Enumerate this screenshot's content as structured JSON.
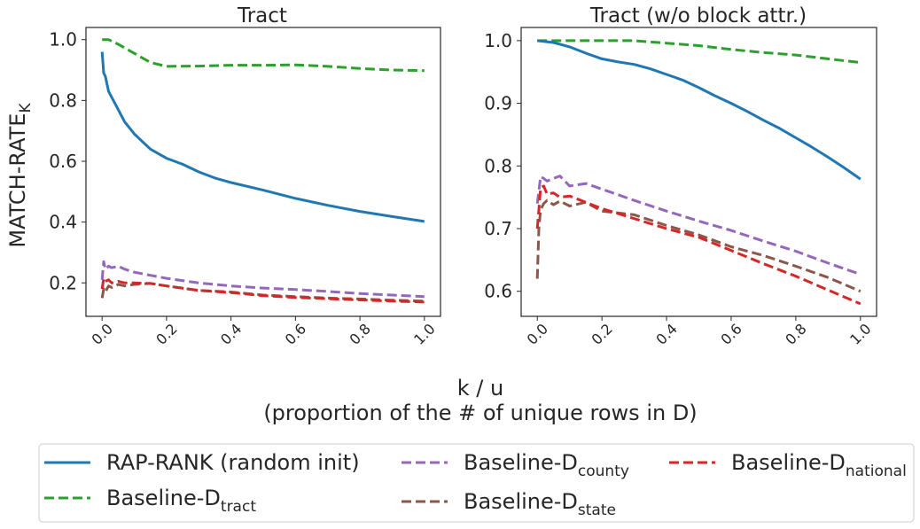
{
  "figure": {
    "ylabel_main": "MATCH-RATE",
    "ylabel_sub": "K",
    "xlabel_line1": "k / u",
    "xlabel_line2": "(proportion of the # of unique rows in D)"
  },
  "legend": {
    "items": [
      {
        "key": "rap",
        "label": "RAP-RANK (random init)",
        "sub": "",
        "color": "#1f77b4",
        "dashed": false
      },
      {
        "key": "tract",
        "label": "Baseline-D",
        "sub": "tract",
        "color": "#2ca02c",
        "dashed": true
      },
      {
        "key": "county",
        "label": "Baseline-D",
        "sub": "county",
        "color": "#9467bd",
        "dashed": true
      },
      {
        "key": "state",
        "label": "Baseline-D",
        "sub": "state",
        "color": "#8c564b",
        "dashed": true
      },
      {
        "key": "national",
        "label": "Baseline-D",
        "sub": "national",
        "color": "#d62728",
        "dashed": true
      }
    ]
  },
  "chart_data": [
    {
      "type": "line",
      "title": "Tract",
      "xlabel": "k / u",
      "ylabel": "MATCH-RATE_K",
      "xlim": [
        -0.05,
        1.05
      ],
      "ylim": [
        0.09,
        1.04
      ],
      "xticks": [
        0.0,
        0.2,
        0.4,
        0.6,
        0.8,
        1.0
      ],
      "xtick_labels": [
        "0.0",
        "0.2",
        "0.4",
        "0.6",
        "0.8",
        "1.0"
      ],
      "yticks": [
        0.2,
        0.4,
        0.6,
        0.8,
        1.0
      ],
      "ytick_labels": [
        "0.2",
        "0.4",
        "0.6",
        "0.8",
        "1.0"
      ],
      "series": [
        {
          "key": "rap",
          "x": [
            0,
            0.005,
            0.01,
            0.02,
            0.03,
            0.05,
            0.07,
            0.1,
            0.15,
            0.2,
            0.25,
            0.3,
            0.35,
            0.4,
            0.5,
            0.6,
            0.7,
            0.8,
            0.9,
            1.0
          ],
          "y": [
            0.96,
            0.89,
            0.88,
            0.83,
            0.81,
            0.77,
            0.73,
            0.69,
            0.64,
            0.61,
            0.59,
            0.565,
            0.545,
            0.53,
            0.505,
            0.478,
            0.455,
            0.435,
            0.418,
            0.402
          ]
        },
        {
          "key": "tract",
          "x": [
            0,
            0.02,
            0.05,
            0.1,
            0.15,
            0.2,
            0.3,
            0.4,
            0.5,
            0.6,
            0.7,
            0.8,
            0.9,
            1.0
          ],
          "y": [
            1.0,
            1.0,
            0.985,
            0.955,
            0.925,
            0.912,
            0.913,
            0.916,
            0.916,
            0.917,
            0.912,
            0.905,
            0.9,
            0.898
          ]
        },
        {
          "key": "county",
          "x": [
            0,
            0.005,
            0.01,
            0.02,
            0.03,
            0.05,
            0.07,
            0.1,
            0.15,
            0.2,
            0.3,
            0.4,
            0.5,
            0.6,
            0.7,
            0.8,
            0.9,
            1.0
          ],
          "y": [
            0.21,
            0.27,
            0.245,
            0.255,
            0.25,
            0.255,
            0.245,
            0.235,
            0.225,
            0.215,
            0.2,
            0.19,
            0.183,
            0.178,
            0.172,
            0.165,
            0.16,
            0.155
          ]
        },
        {
          "key": "state",
          "x": [
            0,
            0.005,
            0.01,
            0.02,
            0.03,
            0.05,
            0.07,
            0.1,
            0.15,
            0.2,
            0.3,
            0.4,
            0.5,
            0.6,
            0.7,
            0.8,
            0.9,
            1.0
          ],
          "y": [
            0.15,
            0.18,
            0.17,
            0.19,
            0.185,
            0.195,
            0.19,
            0.195,
            0.198,
            0.19,
            0.175,
            0.17,
            0.16,
            0.155,
            0.15,
            0.147,
            0.143,
            0.14
          ]
        },
        {
          "key": "national",
          "x": [
            0,
            0.005,
            0.01,
            0.02,
            0.03,
            0.05,
            0.07,
            0.1,
            0.15,
            0.2,
            0.3,
            0.4,
            0.5,
            0.6,
            0.7,
            0.8,
            0.9,
            1.0
          ],
          "y": [
            0.18,
            0.215,
            0.205,
            0.21,
            0.2,
            0.205,
            0.2,
            0.2,
            0.198,
            0.19,
            0.175,
            0.168,
            0.158,
            0.152,
            0.148,
            0.144,
            0.14,
            0.137
          ]
        }
      ]
    },
    {
      "type": "line",
      "title": "Tract (w/o block attr.)",
      "xlabel": "k / u",
      "ylabel": "MATCH-RATE_K",
      "xlim": [
        -0.05,
        1.05
      ],
      "ylim": [
        0.56,
        1.021
      ],
      "xticks": [
        0.0,
        0.2,
        0.4,
        0.6,
        0.8,
        1.0
      ],
      "xtick_labels": [
        "0.0",
        "0.2",
        "0.4",
        "0.6",
        "0.8",
        "1.0"
      ],
      "yticks": [
        0.6,
        0.7,
        0.8,
        0.9,
        1.0
      ],
      "ytick_labels": [
        "0.6",
        "0.7",
        "0.8",
        "0.9",
        "1.0"
      ],
      "series": [
        {
          "key": "rap",
          "x": [
            0,
            0.05,
            0.1,
            0.15,
            0.2,
            0.25,
            0.3,
            0.35,
            0.4,
            0.45,
            0.5,
            0.55,
            0.6,
            0.65,
            0.7,
            0.75,
            0.8,
            0.85,
            0.9,
            0.95,
            1.0
          ],
          "y": [
            1.0,
            0.997,
            0.99,
            0.98,
            0.971,
            0.966,
            0.962,
            0.955,
            0.946,
            0.937,
            0.925,
            0.912,
            0.9,
            0.887,
            0.873,
            0.86,
            0.845,
            0.83,
            0.814,
            0.797,
            0.779
          ]
        },
        {
          "key": "tract",
          "x": [
            0,
            0.1,
            0.2,
            0.3,
            0.4,
            0.5,
            0.6,
            0.7,
            0.8,
            0.9,
            1.0
          ],
          "y": [
            1.0,
            1.0,
            1.0,
            1.0,
            0.996,
            0.992,
            0.986,
            0.981,
            0.977,
            0.971,
            0.965
          ]
        },
        {
          "key": "county",
          "x": [
            0,
            0.005,
            0.01,
            0.02,
            0.03,
            0.05,
            0.07,
            0.1,
            0.15,
            0.2,
            0.3,
            0.4,
            0.5,
            0.6,
            0.7,
            0.8,
            0.9,
            1.0
          ],
          "y": [
            0.74,
            0.76,
            0.783,
            0.78,
            0.776,
            0.78,
            0.784,
            0.768,
            0.772,
            0.763,
            0.745,
            0.728,
            0.712,
            0.697,
            0.68,
            0.664,
            0.645,
            0.627
          ]
        },
        {
          "key": "state",
          "x": [
            0,
            0.005,
            0.01,
            0.02,
            0.03,
            0.05,
            0.07,
            0.1,
            0.15,
            0.2,
            0.3,
            0.4,
            0.5,
            0.6,
            0.7,
            0.8,
            0.9,
            1.0
          ],
          "y": [
            0.62,
            0.7,
            0.73,
            0.74,
            0.745,
            0.738,
            0.744,
            0.736,
            0.742,
            0.728,
            0.722,
            0.705,
            0.69,
            0.671,
            0.657,
            0.64,
            0.622,
            0.6
          ]
        },
        {
          "key": "national",
          "x": [
            0,
            0.005,
            0.01,
            0.02,
            0.03,
            0.05,
            0.07,
            0.1,
            0.15,
            0.2,
            0.3,
            0.4,
            0.5,
            0.6,
            0.7,
            0.8,
            0.9,
            1.0
          ],
          "y": [
            0.7,
            0.73,
            0.765,
            0.768,
            0.755,
            0.757,
            0.75,
            0.752,
            0.742,
            0.732,
            0.716,
            0.7,
            0.686,
            0.665,
            0.644,
            0.624,
            0.602,
            0.58
          ]
        }
      ]
    }
  ]
}
